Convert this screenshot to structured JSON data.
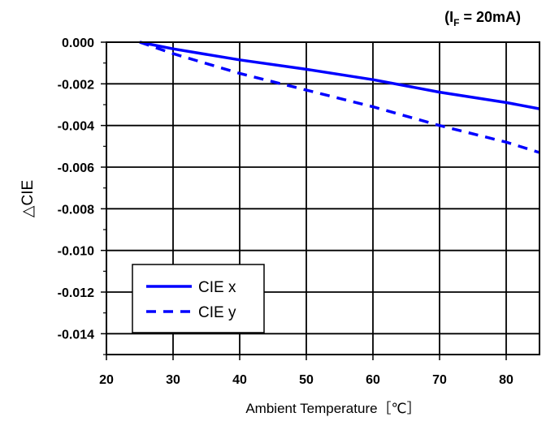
{
  "chart_data": {
    "type": "line",
    "title": "",
    "condition": {
      "prefix": "(I",
      "subscript": "F",
      "suffix": " = 20mA)"
    },
    "xlabel": "Ambient Temperature［℃］",
    "ylabel": "△CIE",
    "xlim": [
      20,
      85
    ],
    "ylim": [
      -0.015,
      0.0
    ],
    "x_ticks": [
      20,
      30,
      40,
      50,
      60,
      70,
      80
    ],
    "x_tick_labels": [
      "20",
      "30",
      "40",
      "50",
      "60",
      "70",
      "80"
    ],
    "y_ticks": [
      0.0,
      -0.002,
      -0.004,
      -0.006,
      -0.008,
      -0.01,
      -0.012,
      -0.014
    ],
    "y_tick_labels": [
      "0.000",
      "-0.002",
      "-0.004",
      "-0.006",
      "-0.008",
      "-0.010",
      "-0.012",
      "-0.014"
    ],
    "grid": true,
    "legend_position": "bottom-left",
    "series": [
      {
        "name": "CIE x",
        "style": "solid",
        "color": "#0000ff",
        "x": [
          25,
          30,
          40,
          50,
          60,
          70,
          80,
          85
        ],
        "y": [
          0.0,
          -0.00032,
          -0.00085,
          -0.0013,
          -0.0018,
          -0.0024,
          -0.0029,
          -0.0032
        ]
      },
      {
        "name": "CIE y",
        "style": "dashed",
        "color": "#0000ff",
        "x": [
          25,
          30,
          40,
          50,
          60,
          70,
          80,
          85
        ],
        "y": [
          0.0,
          -0.00055,
          -0.0015,
          -0.0023,
          -0.0031,
          -0.004,
          -0.0048,
          -0.0053
        ]
      }
    ]
  }
}
